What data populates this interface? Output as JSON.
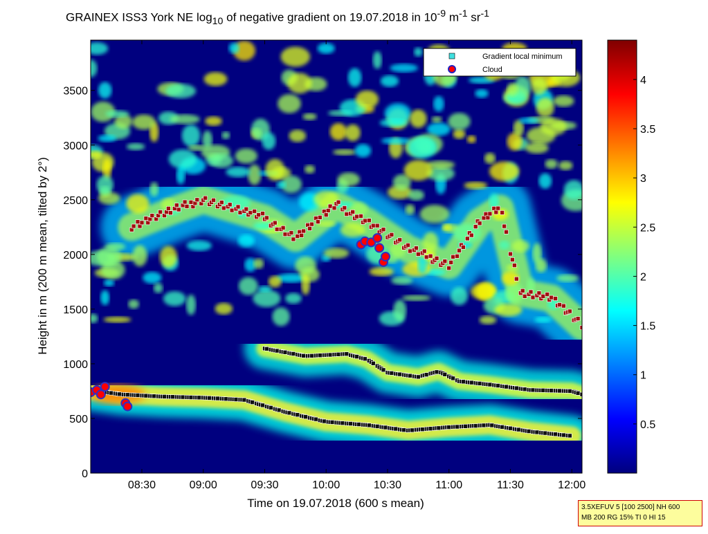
{
  "title": {
    "main": "GRAINEX ISS3 York NE log",
    "sub1": "10",
    "mid1": " of negative gradient on 19.07.2018 in 10",
    "sup1": "-9",
    "mid2": " m",
    "sup2": "-1",
    "mid3": " sr",
    "sup3": "-1"
  },
  "axes": {
    "xlabel": "Time on 19.07.2018 (600 s mean)",
    "ylabel": "Height in m (200 m mean, tilted by 2°)"
  },
  "param_box": {
    "line1": "3.5XEFUV 5 [100 2500] NH 600",
    "line2": "MB 200 RG 15% TI 0 HI 15",
    "border_color": "#d00000",
    "fill_color": "#fdfd9d"
  },
  "chart_data": {
    "type": "heatmap",
    "x_axis": {
      "type": "time",
      "range": [
        "08:05",
        "12:05"
      ],
      "ticks": [
        "08:30",
        "09:00",
        "09:30",
        "10:00",
        "10:30",
        "11:00",
        "11:30",
        "12:00"
      ]
    },
    "y_axis": {
      "range": [
        0,
        3960
      ],
      "ticks": [
        0,
        500,
        1000,
        1500,
        2000,
        2500,
        3000,
        3500
      ]
    },
    "colorbar": {
      "colormap": "jet",
      "range": [
        0,
        4.4
      ],
      "ticks": [
        0.5,
        1,
        1.5,
        2,
        2.5,
        3,
        3.5,
        4
      ]
    },
    "legend": {
      "placement": "top-right",
      "entries": [
        {
          "label": "Gradient local minimum",
          "marker": "square",
          "color": "#40e0e0"
        },
        {
          "label": "Cloud",
          "marker": "circle",
          "color": "#ff0000",
          "edge": "#2020c0"
        }
      ]
    },
    "layers": [
      {
        "name": "lower",
        "points": [
          [
            "08:05",
            760
          ],
          [
            "08:20",
            720
          ],
          [
            "08:40",
            700
          ],
          [
            "09:00",
            690
          ],
          [
            "09:20",
            670
          ],
          [
            "09:40",
            560
          ],
          [
            "10:00",
            470
          ],
          [
            "10:20",
            440
          ],
          [
            "10:40",
            390
          ],
          [
            "11:00",
            420
          ],
          [
            "11:20",
            440
          ],
          [
            "11:40",
            380
          ],
          [
            "12:00",
            340
          ]
        ]
      },
      {
        "name": "middle",
        "points": [
          [
            "09:30",
            1140
          ],
          [
            "09:50",
            1070
          ],
          [
            "10:10",
            1090
          ],
          [
            "10:20",
            1040
          ],
          [
            "10:30",
            920
          ],
          [
            "10:45",
            880
          ],
          [
            "10:55",
            930
          ],
          [
            "11:05",
            840
          ],
          [
            "11:20",
            810
          ],
          [
            "11:40",
            760
          ],
          [
            "12:00",
            750
          ],
          [
            "12:05",
            720
          ]
        ]
      },
      {
        "name": "upper",
        "points": [
          [
            "08:25",
            2250
          ],
          [
            "08:45",
            2400
          ],
          [
            "09:00",
            2500
          ],
          [
            "09:30",
            2330
          ],
          [
            "09:45",
            2150
          ],
          [
            "10:05",
            2450
          ],
          [
            "10:20",
            2300
          ],
          [
            "10:40",
            2050
          ],
          [
            "11:00",
            1900
          ],
          [
            "11:15",
            2300
          ],
          [
            "11:25",
            2420
          ],
          [
            "11:35",
            1650
          ],
          [
            "11:50",
            1600
          ],
          [
            "12:05",
            1340
          ]
        ]
      }
    ],
    "clouds": [
      [
        "08:05",
        740
      ],
      [
        "08:08",
        760
      ],
      [
        "08:10",
        720
      ],
      [
        "08:12",
        790
      ],
      [
        "08:22",
        640
      ],
      [
        "08:23",
        610
      ],
      [
        "10:17",
        2090
      ],
      [
        "10:19",
        2120
      ],
      [
        "10:22",
        2110
      ],
      [
        "10:25",
        2150
      ],
      [
        "10:26",
        2060
      ],
      [
        "10:28",
        1930
      ],
      [
        "10:29",
        1980
      ]
    ]
  }
}
